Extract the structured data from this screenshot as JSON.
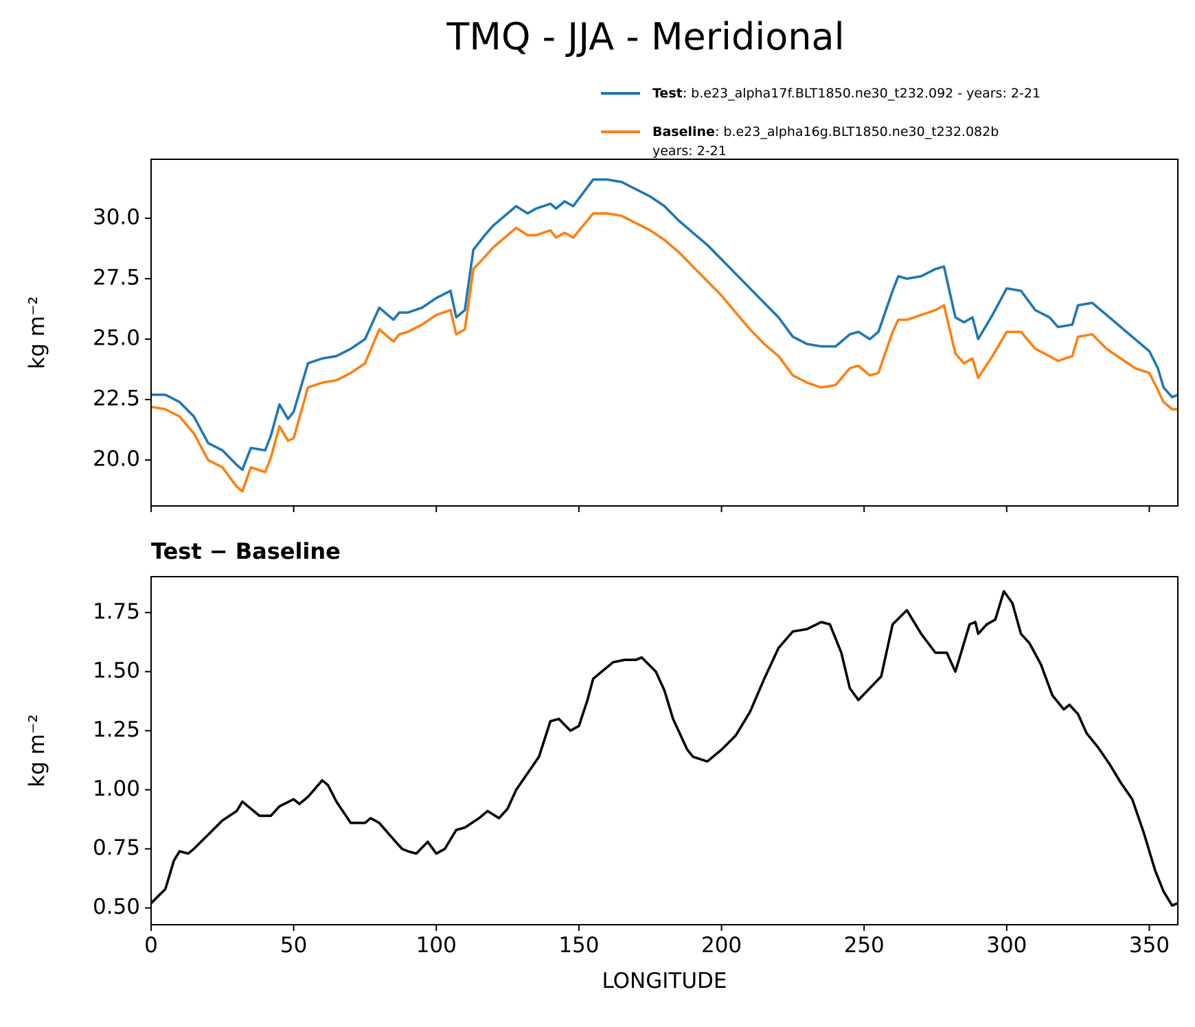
{
  "chart_data": [
    {
      "type": "line",
      "title": "TMQ - JJA - Meridional",
      "ylabel": "kg m⁻²",
      "x": [
        0,
        5,
        10,
        15,
        20,
        25,
        30,
        32,
        35,
        40,
        42,
        45,
        48,
        50,
        55,
        60,
        65,
        70,
        75,
        80,
        85,
        87,
        90,
        95,
        100,
        105,
        107,
        110,
        113,
        117,
        120,
        125,
        128,
        132,
        135,
        140,
        142,
        145,
        148,
        155,
        160,
        165,
        170,
        175,
        180,
        185,
        190,
        195,
        200,
        205,
        210,
        215,
        220,
        225,
        230,
        235,
        240,
        245,
        248,
        252,
        255,
        260,
        262,
        265,
        270,
        275,
        278,
        282,
        285,
        288,
        290,
        295,
        300,
        305,
        310,
        315,
        318,
        323,
        325,
        330,
        335,
        340,
        345,
        350,
        353,
        355,
        358,
        360
      ],
      "series": [
        {
          "name": "Test",
          "description": [
            ": b.e23_alpha17f.BLT1850.ne30_t232.092 - years: 2-21"
          ],
          "color": "#1f77b4",
          "values": [
            22.7,
            22.7,
            22.4,
            21.8,
            20.7,
            20.4,
            19.8,
            19.6,
            20.5,
            20.4,
            21.0,
            22.3,
            21.7,
            22.0,
            24.0,
            24.2,
            24.3,
            24.6,
            25.0,
            26.3,
            25.8,
            26.1,
            26.1,
            26.3,
            26.7,
            27.0,
            25.9,
            26.2,
            28.7,
            29.3,
            29.7,
            30.2,
            30.5,
            30.2,
            30.4,
            30.6,
            30.4,
            30.7,
            30.5,
            31.6,
            31.6,
            31.5,
            31.2,
            30.9,
            30.5,
            29.9,
            29.4,
            28.9,
            28.3,
            27.7,
            27.1,
            26.5,
            25.9,
            25.1,
            24.8,
            24.7,
            24.7,
            25.2,
            25.3,
            25.0,
            25.3,
            27.0,
            27.6,
            27.5,
            27.6,
            27.9,
            28.0,
            25.9,
            25.7,
            25.9,
            25.0,
            26.0,
            27.1,
            27.0,
            26.2,
            25.9,
            25.5,
            25.6,
            26.4,
            26.5,
            26.0,
            25.5,
            25.0,
            24.5,
            23.8,
            23.0,
            22.6,
            22.7
          ]
        },
        {
          "name": "Baseline",
          "description": [
            ": b.e23_alpha16g.BLT1850.ne30_t232.082b",
            "years: 2-21"
          ],
          "color": "#ff7f0e",
          "values": [
            22.2,
            22.1,
            21.8,
            21.1,
            20.0,
            19.7,
            18.9,
            18.7,
            19.7,
            19.5,
            20.1,
            21.4,
            20.8,
            20.9,
            23.0,
            23.2,
            23.3,
            23.6,
            24.0,
            25.4,
            24.9,
            25.2,
            25.3,
            25.6,
            26.0,
            26.2,
            25.2,
            25.4,
            27.9,
            28.4,
            28.8,
            29.3,
            29.6,
            29.3,
            29.3,
            29.5,
            29.2,
            29.4,
            29.2,
            30.2,
            30.2,
            30.1,
            29.8,
            29.5,
            29.1,
            28.6,
            28.0,
            27.4,
            26.8,
            26.1,
            25.4,
            24.8,
            24.3,
            23.5,
            23.2,
            23.0,
            23.1,
            23.8,
            23.9,
            23.5,
            23.6,
            25.3,
            25.8,
            25.8,
            26.0,
            26.2,
            26.4,
            24.4,
            24.0,
            24.2,
            23.4,
            24.3,
            25.3,
            25.3,
            24.6,
            24.3,
            24.1,
            24.3,
            25.1,
            25.2,
            24.6,
            24.2,
            23.8,
            23.6,
            22.9,
            22.4,
            22.1,
            22.1
          ]
        }
      ],
      "xlim": [
        0,
        360
      ],
      "ylim": [
        18.1,
        32.44
      ],
      "yticks": [
        {
          "value": 20,
          "label": "20.0"
        },
        22.5,
        {
          "value": 25,
          "label": "25.0"
        },
        27.5,
        {
          "value": 30,
          "label": "30.0"
        }
      ]
    },
    {
      "type": "line",
      "title": "Test − Baseline",
      "ylabel": "kg m⁻²",
      "xlabel": "LONGITUDE",
      "x": [
        0,
        5,
        8,
        10,
        13,
        15,
        20,
        25,
        30,
        32,
        35,
        38,
        42,
        45,
        50,
        52,
        55,
        60,
        62,
        65,
        70,
        75,
        77,
        80,
        85,
        88,
        90,
        93,
        97,
        100,
        103,
        107,
        110,
        115,
        118,
        122,
        125,
        128,
        132,
        136,
        140,
        143,
        147,
        150,
        153,
        155,
        158,
        162,
        166,
        170,
        172,
        177,
        180,
        183,
        188,
        190,
        195,
        200,
        205,
        210,
        215,
        220,
        225,
        230,
        235,
        238,
        242,
        245,
        248,
        252,
        256,
        260,
        265,
        270,
        275,
        279,
        282,
        287,
        289,
        290,
        293,
        296,
        299,
        302,
        305,
        308,
        312,
        316,
        320,
        322,
        325,
        328,
        332,
        336,
        340,
        344,
        348,
        352,
        355,
        358,
        360
      ],
      "series": [
        {
          "color": "#000000",
          "values": [
            0.52,
            0.58,
            0.7,
            0.74,
            0.73,
            0.75,
            0.81,
            0.87,
            0.91,
            0.95,
            0.92,
            0.89,
            0.89,
            0.93,
            0.96,
            0.94,
            0.97,
            1.04,
            1.02,
            0.95,
            0.86,
            0.86,
            0.88,
            0.86,
            0.79,
            0.75,
            0.74,
            0.73,
            0.78,
            0.73,
            0.75,
            0.83,
            0.84,
            0.88,
            0.91,
            0.88,
            0.92,
            1.0,
            1.07,
            1.14,
            1.29,
            1.3,
            1.25,
            1.27,
            1.38,
            1.47,
            1.5,
            1.54,
            1.55,
            1.55,
            1.56,
            1.5,
            1.42,
            1.3,
            1.17,
            1.14,
            1.12,
            1.17,
            1.23,
            1.33,
            1.47,
            1.6,
            1.67,
            1.68,
            1.71,
            1.7,
            1.58,
            1.43,
            1.38,
            1.43,
            1.48,
            1.7,
            1.76,
            1.66,
            1.58,
            1.58,
            1.5,
            1.7,
            1.71,
            1.66,
            1.7,
            1.72,
            1.84,
            1.79,
            1.66,
            1.62,
            1.53,
            1.4,
            1.34,
            1.36,
            1.32,
            1.24,
            1.18,
            1.11,
            1.03,
            0.96,
            0.82,
            0.66,
            0.57,
            0.51,
            0.52
          ]
        }
      ],
      "xlim": [
        0,
        360
      ],
      "ylim": [
        0.429,
        1.902
      ],
      "xticks": [
        0,
        50,
        100,
        150,
        200,
        250,
        300,
        350
      ],
      "yticks": [
        {
          "value": 0.5,
          "label": "0.50"
        },
        0.75,
        {
          "value": 1,
          "label": "1.00"
        },
        1.25,
        {
          "value": 1.5,
          "label": "1.50"
        },
        1.75
      ]
    }
  ]
}
